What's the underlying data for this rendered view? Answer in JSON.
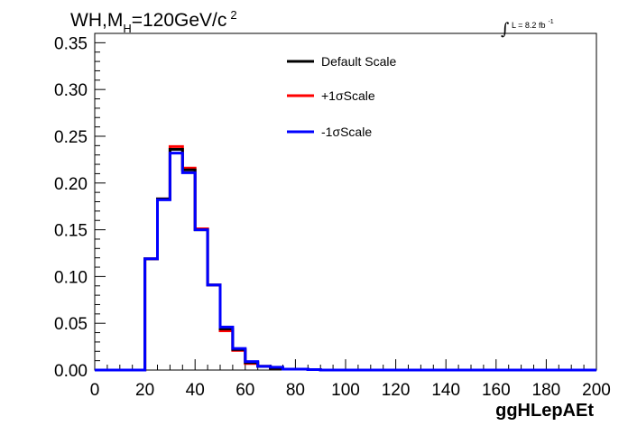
{
  "chart_data": {
    "type": "line",
    "title": "WH,M",
    "title_subscript": "H",
    "title_rest": "=120GeV/c",
    "title_superscript": "2",
    "annotation": {
      "integral": "∫",
      "text": "L = 8.2 fb",
      "superscript": "-1"
    },
    "xlabel": "ggHLepAEt",
    "ylabel": "",
    "xlim": [
      0,
      200
    ],
    "ylim": [
      0,
      0.36
    ],
    "x_ticks": [
      0,
      20,
      40,
      60,
      80,
      100,
      120,
      140,
      160,
      180,
      200
    ],
    "x_tick_labels": [
      "0",
      "20",
      "40",
      "60",
      "80",
      "100",
      "120",
      "140",
      "160",
      "180",
      "200"
    ],
    "y_ticks": [
      0,
      0.05,
      0.1,
      0.15,
      0.2,
      0.25,
      0.3,
      0.35
    ],
    "y_tick_labels": [
      "0.00",
      "0.05",
      "0.10",
      "0.15",
      "0.20",
      "0.25",
      "0.30",
      "0.35"
    ],
    "bin_edges": [
      0,
      5,
      10,
      15,
      20,
      25,
      30,
      35,
      40,
      45,
      50,
      55,
      60,
      65,
      70,
      75,
      80,
      85,
      90,
      95,
      100,
      105,
      110,
      115,
      120,
      125,
      130,
      135,
      140,
      145,
      150,
      155,
      160,
      165,
      170,
      175,
      180,
      185,
      190,
      195,
      200
    ],
    "legend_position": "top-center",
    "series": [
      {
        "name": "+1σScale",
        "color": "#ff0000",
        "values": [
          0,
          0,
          0,
          0,
          0.119,
          0.183,
          0.239,
          0.216,
          0.151,
          0.091,
          0.042,
          0.021,
          0.007,
          0.004,
          0.002,
          0.001,
          0.001,
          0.0005,
          0,
          0,
          0,
          0,
          0,
          0,
          0,
          0,
          0,
          0,
          0,
          0,
          0,
          0,
          0,
          0,
          0,
          0,
          0,
          0,
          0,
          0
        ]
      },
      {
        "name": "Default Scale",
        "color": "#000000",
        "values": [
          0,
          0,
          0,
          0,
          0.119,
          0.183,
          0.236,
          0.214,
          0.15,
          0.091,
          0.044,
          0.022,
          0.008,
          0.004,
          0.002,
          0.001,
          0.001,
          0.0005,
          0,
          0,
          0,
          0,
          0,
          0,
          0,
          0,
          0,
          0,
          0,
          0,
          0,
          0,
          0,
          0,
          0,
          0,
          0,
          0,
          0,
          0
        ]
      },
      {
        "name": "-1σScale",
        "color": "#0000ff",
        "values": [
          0,
          0,
          0,
          0,
          0.119,
          0.182,
          0.232,
          0.211,
          0.15,
          0.091,
          0.046,
          0.023,
          0.009,
          0.004,
          0.003,
          0.001,
          0.001,
          0.0005,
          0,
          0,
          0,
          0,
          0,
          0,
          0,
          0,
          0,
          0,
          0,
          0,
          0,
          0,
          0,
          0,
          0,
          0,
          0,
          0,
          0,
          0
        ]
      }
    ],
    "legend_order": [
      "Default Scale",
      "+1σScale",
      "-1σScale"
    ]
  }
}
